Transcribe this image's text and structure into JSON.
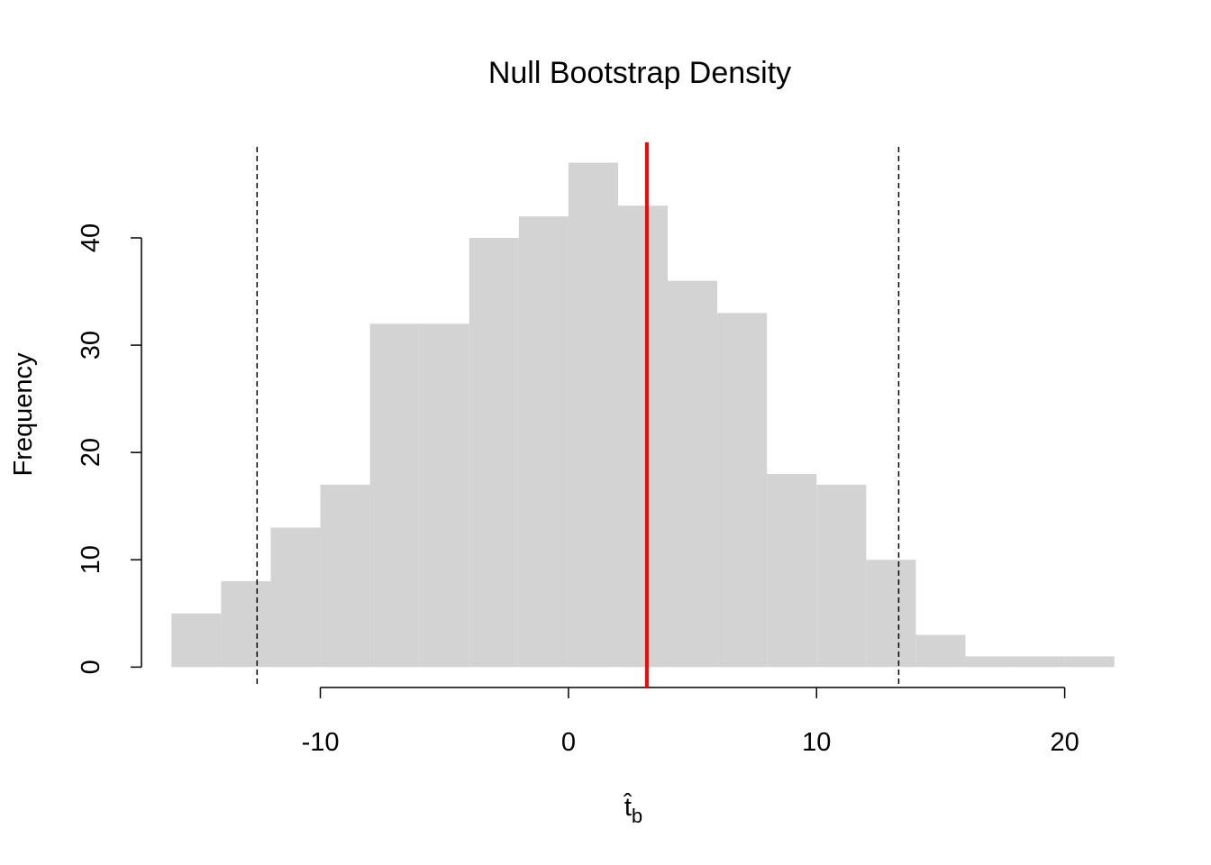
{
  "chart_data": {
    "type": "histogram",
    "title": "Null Bootstrap Density",
    "x_label": "t̂",
    "x_label_sub": "b",
    "y_label": "Frequency",
    "bins": [
      -16,
      -14,
      -12,
      -10,
      -8,
      -6,
      -4,
      -2,
      0,
      2,
      4,
      6,
      8,
      10,
      12,
      14,
      16,
      18,
      20,
      22
    ],
    "counts": [
      5,
      8,
      13,
      17,
      32,
      32,
      40,
      42,
      47,
      43,
      36,
      33,
      18,
      17,
      10,
      3,
      1,
      1,
      1
    ],
    "color": "#d3d3d3",
    "xlim": [
      -17.5,
      23.5
    ],
    "ylim": [
      -1.9,
      48.9
    ],
    "xticks": [
      -10,
      0,
      10,
      20
    ],
    "yticks": [
      0,
      10,
      20,
      30,
      40
    ],
    "vlines": [
      {
        "x": 3.16,
        "color": "#ff0000",
        "dashed": false
      },
      {
        "x": -12.55,
        "color": "#000000",
        "dashed": true
      },
      {
        "x": 13.31,
        "color": "#000000",
        "dashed": true
      }
    ]
  }
}
